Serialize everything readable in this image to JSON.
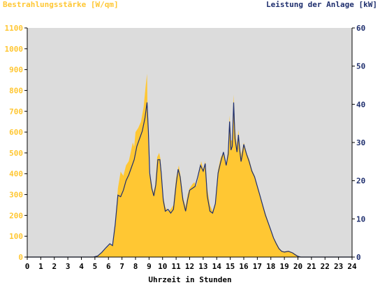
{
  "chart_data": {
    "type": "area",
    "title_left": "Bestrahlungsstärke [W/qm]",
    "title_right": "Leistung der Anlage [kW]",
    "xlabel": "Uhrzeit in Stunden",
    "x_ticks": [
      "0",
      "1",
      "2",
      "3",
      "4",
      "5",
      "6",
      "7",
      "8",
      "9",
      "10",
      "11",
      "12",
      "13",
      "14",
      "15",
      "16",
      "17",
      "18",
      "19",
      "20",
      "21",
      "22",
      "23",
      "24"
    ],
    "xlim": [
      0,
      24
    ],
    "y_left": {
      "range": [
        0,
        1100
      ],
      "ticks": [
        "0",
        "100",
        "200",
        "300",
        "400",
        "500",
        "600",
        "700",
        "800",
        "900",
        "1000",
        "1100"
      ],
      "color": "#ffc733"
    },
    "y_right": {
      "range": [
        0,
        60
      ],
      "ticks": [
        "0",
        "10",
        "20",
        "30",
        "40",
        "50",
        "60"
      ],
      "color": "#1f2f6e"
    },
    "background_color": "#dcdcdc",
    "grid": false,
    "series": [
      {
        "axis": "left",
        "style": "area",
        "color": "#ffc733",
        "points": [
          [
            0,
            0
          ],
          [
            4.9,
            0
          ],
          [
            5.2,
            8
          ],
          [
            5.5,
            20
          ],
          [
            5.8,
            40
          ],
          [
            6.1,
            60
          ],
          [
            6.3,
            55
          ],
          [
            6.5,
            150
          ],
          [
            6.7,
            330
          ],
          [
            6.9,
            410
          ],
          [
            7.1,
            390
          ],
          [
            7.3,
            440
          ],
          [
            7.5,
            460
          ],
          [
            7.6,
            490
          ],
          [
            7.7,
            520
          ],
          [
            7.8,
            550
          ],
          [
            7.9,
            530
          ],
          [
            8,
            600
          ],
          [
            8.2,
            620
          ],
          [
            8.4,
            650
          ],
          [
            8.6,
            720
          ],
          [
            8.75,
            820
          ],
          [
            8.85,
            880
          ],
          [
            8.9,
            650
          ],
          [
            9.0,
            400
          ],
          [
            9.15,
            370
          ],
          [
            9.3,
            310
          ],
          [
            9.45,
            340
          ],
          [
            9.6,
            480
          ],
          [
            9.75,
            500
          ],
          [
            9.85,
            470
          ],
          [
            10,
            300
          ],
          [
            10.2,
            240
          ],
          [
            10.4,
            220
          ],
          [
            10.6,
            230
          ],
          [
            10.8,
            250
          ],
          [
            11,
            380
          ],
          [
            11.2,
            440
          ],
          [
            11.35,
            380
          ],
          [
            11.5,
            290
          ],
          [
            11.7,
            240
          ],
          [
            11.85,
            300
          ],
          [
            12,
            330
          ],
          [
            12.2,
            350
          ],
          [
            12.35,
            360
          ],
          [
            12.5,
            340
          ],
          [
            12.7,
            400
          ],
          [
            12.85,
            460
          ],
          [
            13,
            420
          ],
          [
            13.15,
            460
          ],
          [
            13.3,
            330
          ],
          [
            13.5,
            250
          ],
          [
            13.7,
            220
          ],
          [
            13.9,
            260
          ],
          [
            14.1,
            420
          ],
          [
            14.3,
            480
          ],
          [
            14.5,
            500
          ],
          [
            14.7,
            440
          ],
          [
            14.85,
            520
          ],
          [
            14.95,
            680
          ],
          [
            15.05,
            560
          ],
          [
            15.15,
            560
          ],
          [
            15.25,
            780
          ],
          [
            15.35,
            620
          ],
          [
            15.5,
            530
          ],
          [
            15.6,
            610
          ],
          [
            15.7,
            540
          ],
          [
            15.8,
            490
          ],
          [
            15.9,
            520
          ],
          [
            16,
            550
          ],
          [
            16.2,
            500
          ],
          [
            16.4,
            470
          ],
          [
            16.6,
            420
          ],
          [
            16.8,
            390
          ],
          [
            17,
            340
          ],
          [
            17.2,
            300
          ],
          [
            17.4,
            250
          ],
          [
            17.6,
            210
          ],
          [
            17.8,
            170
          ],
          [
            18,
            130
          ],
          [
            18.2,
            95
          ],
          [
            18.4,
            70
          ],
          [
            18.6,
            45
          ],
          [
            18.8,
            30
          ],
          [
            19,
            28
          ],
          [
            19.3,
            30
          ],
          [
            19.6,
            22
          ],
          [
            19.8,
            15
          ],
          [
            20.0,
            5
          ],
          [
            20.2,
            0
          ],
          [
            24,
            0
          ]
        ]
      },
      {
        "axis": "right",
        "style": "line",
        "color": "#1f2f6e",
        "points": [
          [
            0,
            0
          ],
          [
            4.9,
            0
          ],
          [
            5.2,
            0.3
          ],
          [
            5.5,
            1.2
          ],
          [
            5.8,
            2.4
          ],
          [
            6.1,
            3.5
          ],
          [
            6.3,
            3.0
          ],
          [
            6.5,
            8.5
          ],
          [
            6.7,
            16.2
          ],
          [
            6.9,
            15.8
          ],
          [
            7.1,
            17.5
          ],
          [
            7.3,
            20
          ],
          [
            7.5,
            21.5
          ],
          [
            7.7,
            23.5
          ],
          [
            7.9,
            25.5
          ],
          [
            8.1,
            29
          ],
          [
            8.3,
            31
          ],
          [
            8.5,
            33
          ],
          [
            8.7,
            36.5
          ],
          [
            8.85,
            40.5
          ],
          [
            8.95,
            33
          ],
          [
            9.05,
            22
          ],
          [
            9.2,
            18
          ],
          [
            9.35,
            16
          ],
          [
            9.5,
            19
          ],
          [
            9.65,
            25.5
          ],
          [
            9.8,
            25.5
          ],
          [
            9.9,
            22
          ],
          [
            10.05,
            15
          ],
          [
            10.2,
            12
          ],
          [
            10.4,
            12.5
          ],
          [
            10.6,
            11.5
          ],
          [
            10.8,
            12.5
          ],
          [
            11,
            19
          ],
          [
            11.15,
            23
          ],
          [
            11.3,
            21
          ],
          [
            11.5,
            15
          ],
          [
            11.7,
            12
          ],
          [
            11.85,
            15
          ],
          [
            12,
            17.5
          ],
          [
            12.2,
            18
          ],
          [
            12.4,
            18.5
          ],
          [
            12.6,
            21
          ],
          [
            12.8,
            24
          ],
          [
            13,
            22.5
          ],
          [
            13.15,
            24.5
          ],
          [
            13.3,
            16
          ],
          [
            13.5,
            12
          ],
          [
            13.7,
            11.5
          ],
          [
            13.9,
            14
          ],
          [
            14.1,
            22
          ],
          [
            14.3,
            25
          ],
          [
            14.5,
            27.5
          ],
          [
            14.7,
            24
          ],
          [
            14.85,
            27
          ],
          [
            14.95,
            35.5
          ],
          [
            15.05,
            28
          ],
          [
            15.15,
            29
          ],
          [
            15.25,
            40.5
          ],
          [
            15.35,
            31
          ],
          [
            15.5,
            27.5
          ],
          [
            15.6,
            32
          ],
          [
            15.7,
            28
          ],
          [
            15.8,
            25
          ],
          [
            15.9,
            27
          ],
          [
            16,
            29.5
          ],
          [
            16.2,
            27
          ],
          [
            16.4,
            25
          ],
          [
            16.6,
            22.5
          ],
          [
            16.8,
            21
          ],
          [
            17,
            18.5
          ],
          [
            17.2,
            16
          ],
          [
            17.4,
            13.5
          ],
          [
            17.6,
            11
          ],
          [
            17.8,
            9
          ],
          [
            18,
            7
          ],
          [
            18.2,
            5
          ],
          [
            18.4,
            3.5
          ],
          [
            18.6,
            2.2
          ],
          [
            18.8,
            1.5
          ],
          [
            19,
            1.3
          ],
          [
            19.3,
            1.5
          ],
          [
            19.6,
            1.1
          ],
          [
            19.8,
            0.6
          ],
          [
            20.0,
            0.2
          ],
          [
            20.2,
            0
          ],
          [
            24,
            0
          ]
        ]
      }
    ]
  }
}
